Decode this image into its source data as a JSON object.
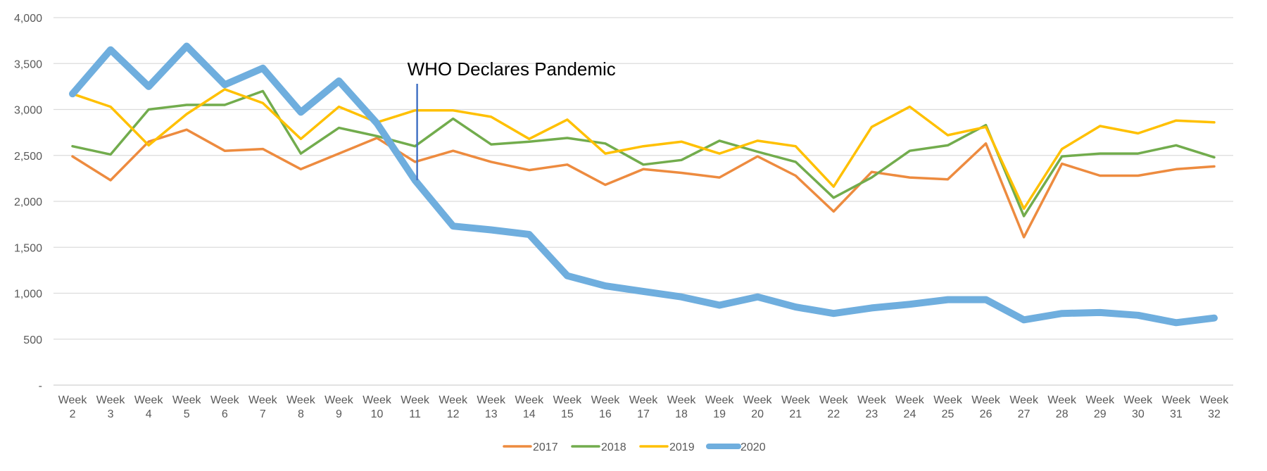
{
  "chart_data": {
    "type": "line",
    "title": "",
    "xlabel": "",
    "ylabel": "",
    "ylim": [
      0,
      4000
    ],
    "yticks": [
      0,
      500,
      1000,
      1500,
      2000,
      2500,
      3000,
      3500,
      4000
    ],
    "ytick_labels": [
      "-",
      "500",
      "1,000",
      "1,500",
      "2,000",
      "2,500",
      "3,000",
      "3,500",
      "4,000"
    ],
    "grid": true,
    "legend_position": "bottom",
    "categories": [
      "Week 2",
      "Week 3",
      "Week 4",
      "Week 5",
      "Week 6",
      "Week 7",
      "Week 8",
      "Week 9",
      "Week 10",
      "Week 11",
      "Week 12",
      "Week 13",
      "Week 14",
      "Week 15",
      "Week 16",
      "Week 17",
      "Week 18",
      "Week 19",
      "Week 20",
      "Week 21",
      "Week 22",
      "Week 23",
      "Week 24",
      "Week 25",
      "Week 26",
      "Week 27",
      "Week 28",
      "Week 29",
      "Week 30",
      "Week 31",
      "Week 32"
    ],
    "series": [
      {
        "name": "2017",
        "color": "#ED8B3F",
        "values": [
          2490,
          2230,
          2650,
          2780,
          2550,
          2570,
          2350,
          2520,
          2690,
          2430,
          2550,
          2430,
          2340,
          2400,
          2180,
          2350,
          2310,
          2260,
          2490,
          2280,
          1890,
          2320,
          2260,
          2240,
          2630,
          1610,
          2410,
          2280,
          2280,
          2350,
          2380
        ]
      },
      {
        "name": "2018",
        "color": "#72AC4D",
        "values": [
          2600,
          2510,
          3000,
          3050,
          3050,
          3200,
          2520,
          2800,
          2710,
          2600,
          2900,
          2620,
          2650,
          2690,
          2630,
          2400,
          2450,
          2660,
          2540,
          2430,
          2040,
          2260,
          2550,
          2610,
          2830,
          1840,
          2490,
          2520,
          2520,
          2610,
          2480
        ]
      },
      {
        "name": "2019",
        "color": "#FFC000",
        "values": [
          3170,
          3030,
          2610,
          2950,
          3220,
          3070,
          2680,
          3030,
          2860,
          2990,
          2990,
          2920,
          2680,
          2890,
          2520,
          2600,
          2650,
          2520,
          2660,
          2600,
          2160,
          2810,
          3030,
          2720,
          2810,
          1920,
          2570,
          2820,
          2740,
          2880,
          2860
        ]
      },
      {
        "name": "2020",
        "color": "#6FAEDE",
        "values": [
          3170,
          3650,
          3250,
          3690,
          3270,
          3450,
          2970,
          3310,
          2850,
          2230,
          1730,
          1690,
          1640,
          1190,
          1080,
          1020,
          960,
          870,
          960,
          850,
          780,
          840,
          880,
          930,
          930,
          710,
          780,
          790,
          760,
          680,
          730
        ]
      }
    ],
    "annotations": [
      {
        "text": "WHO Declares Pandemic",
        "category": "Week 11",
        "y_top": 3280,
        "y_bottom": 2230
      }
    ]
  }
}
